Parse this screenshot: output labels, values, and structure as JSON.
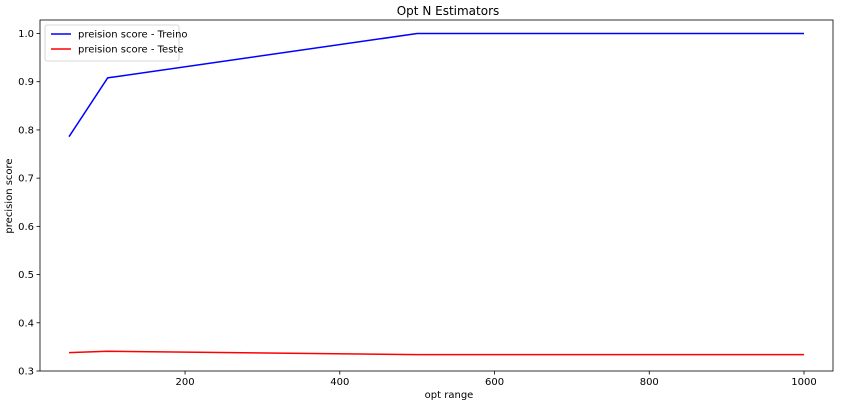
{
  "chart_data": {
    "type": "line",
    "title": "Opt N Estimators",
    "xlabel": "opt range",
    "ylabel": "precision score",
    "xlim": [
      12.5,
      1037.5
    ],
    "ylim": [
      0.3,
      1.028
    ],
    "xticks": [
      200,
      400,
      600,
      800,
      1000
    ],
    "xtick_labels": [
      "200",
      "400",
      "600",
      "800",
      "1000"
    ],
    "yticks": [
      0.3,
      0.4,
      0.5,
      0.6,
      0.7,
      0.8,
      0.9,
      1.0
    ],
    "ytick_labels": [
      "0.3",
      "0.4",
      "0.5",
      "0.6",
      "0.7",
      "0.8",
      "0.9",
      "1.0"
    ],
    "grid": false,
    "legend_position": "top-left",
    "x": [
      50,
      100,
      500,
      1000
    ],
    "series": [
      {
        "name": "preision score - Treino",
        "color": "#0000ff",
        "values": [
          0.786,
          0.908,
          1.0,
          1.0
        ]
      },
      {
        "name": "preision score - Teste",
        "color": "#ff0000",
        "values": [
          0.338,
          0.341,
          0.334,
          0.334
        ]
      }
    ]
  }
}
